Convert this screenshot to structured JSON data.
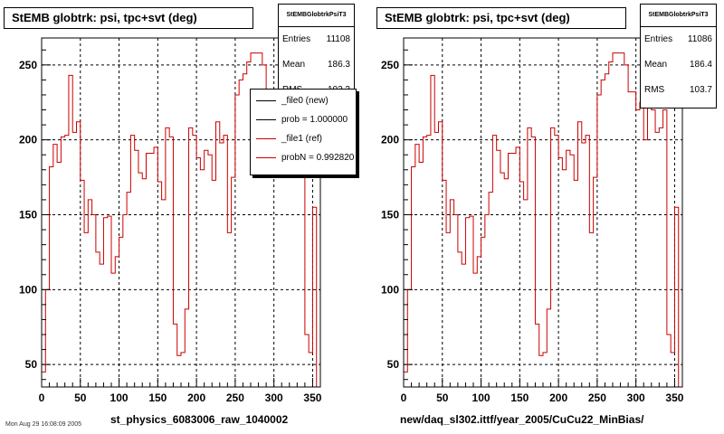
{
  "footer": "Mon Aug 29 16:08:09 2005",
  "chart_data": [
    {
      "type": "histogram",
      "title": "StEMB globtrk: psi, tpc+svt (deg)",
      "xlabel": "st_physics_6083006_raw_1040002",
      "xlim": [
        0,
        360
      ],
      "ylim": [
        35,
        268
      ],
      "xticks": [
        0,
        50,
        100,
        150,
        200,
        250,
        300,
        350
      ],
      "yticks": [
        50,
        100,
        150,
        200,
        250
      ],
      "grid": true,
      "bin_width": 5,
      "stats": {
        "title": "StEMBGlobtrkPsiT3",
        "rows": [
          {
            "label": "Entries",
            "value": "11108"
          },
          {
            "label": "Mean",
            "value": "186.3"
          },
          {
            "label": "RMS",
            "value": "103.3"
          }
        ]
      },
      "legend": {
        "entries": [
          {
            "label": "_file0 (new)",
            "color": "#000000"
          },
          {
            "label": "prob = 1.000000",
            "color": "#000000"
          },
          {
            "label": "_file1 (ref)",
            "color": "#cc0000"
          },
          {
            "label": "probN = 0.992820",
            "color": "#cc0000"
          }
        ]
      },
      "series": [
        {
          "color": "#cc0000",
          "values": [
            45,
            100,
            182,
            197,
            185,
            202,
            203,
            243,
            205,
            212,
            173,
            138,
            160,
            150,
            125,
            117,
            148,
            149,
            111,
            122,
            135,
            150,
            165,
            203,
            193,
            178,
            174,
            191,
            191,
            195,
            172,
            160,
            208,
            202,
            77,
            56,
            58,
            87,
            208,
            203,
            188,
            180,
            193,
            190,
            173,
            212,
            198,
            203,
            138,
            175,
            230,
            240,
            244,
            252,
            258,
            258,
            258,
            250,
            232,
            232,
            220,
            225,
            200,
            230,
            220,
            205,
            208,
            220,
            70,
            58,
            155
          ]
        }
      ]
    },
    {
      "type": "histogram",
      "title": "StEMB globtrk: psi, tpc+svt (deg)",
      "xlabel": "new/daq_sl302.ittf/year_2005/CuCu22_MinBias/",
      "xlim": [
        0,
        360
      ],
      "ylim": [
        35,
        268
      ],
      "xticks": [
        0,
        50,
        100,
        150,
        200,
        250,
        300,
        350
      ],
      "yticks": [
        50,
        100,
        150,
        200,
        250
      ],
      "grid": true,
      "bin_width": 5,
      "stats": {
        "title": "StEMBGlobtrkPsiT3",
        "rows": [
          {
            "label": "Entries",
            "value": "11086"
          },
          {
            "label": "Mean",
            "value": "186.4"
          },
          {
            "label": "RMS",
            "value": "103.7"
          }
        ]
      },
      "series": [
        {
          "color": "#cc0000",
          "values": [
            45,
            100,
            182,
            197,
            185,
            202,
            203,
            243,
            205,
            212,
            173,
            138,
            160,
            150,
            125,
            117,
            148,
            149,
            111,
            122,
            135,
            150,
            165,
            203,
            193,
            178,
            174,
            191,
            191,
            195,
            172,
            160,
            208,
            202,
            77,
            56,
            58,
            87,
            208,
            203,
            188,
            180,
            193,
            190,
            173,
            212,
            198,
            203,
            138,
            175,
            230,
            240,
            244,
            252,
            258,
            258,
            258,
            250,
            232,
            232,
            220,
            225,
            200,
            230,
            220,
            205,
            208,
            220,
            70,
            58,
            155
          ]
        }
      ]
    }
  ]
}
